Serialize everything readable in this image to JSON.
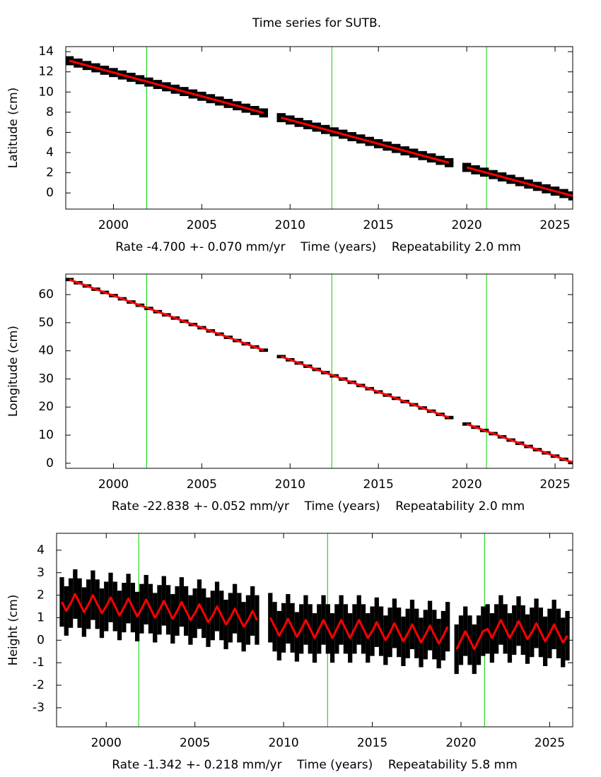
{
  "title": "Time series for SUTB.",
  "chart_data": [
    {
      "type": "line",
      "ylabel": "Latitude (cm)",
      "xlabel": "Rate -4.700 +- 0.070 mm/yr    Time (years)    Repeatability 2.0 mm",
      "xlim": [
        1997.3,
        2026.0
      ],
      "ylim": [
        -1.6,
        14.5
      ],
      "xticks": [
        2000,
        2005,
        2010,
        2015,
        2020,
        2025
      ],
      "yticks": [
        0,
        2,
        4,
        6,
        8,
        10,
        12,
        14
      ],
      "vlines": {
        "color": "#00d000",
        "values": [
          2001.88,
          2012.36,
          2021.12
        ]
      },
      "x": [
        1997.5,
        1998,
        1998.5,
        1999,
        1999.5,
        2000,
        2000.5,
        2001,
        2001.5,
        2002,
        2002.5,
        2003,
        2003.5,
        2004,
        2004.5,
        2005,
        2005.5,
        2006,
        2006.5,
        2007,
        2007.5,
        2008,
        2008.5,
        2009,
        2009.5,
        2010,
        2010.5,
        2011,
        2011.5,
        2012,
        2012.5,
        2013,
        2013.5,
        2014,
        2014.5,
        2015,
        2015.5,
        2016,
        2016.5,
        2017,
        2017.5,
        2018,
        2018.5,
        2019,
        2019.5,
        2020,
        2020.5,
        2021,
        2021.5,
        2022,
        2022.5,
        2023,
        2023.5,
        2024,
        2024.5,
        2025,
        2025.5,
        2026
      ],
      "series": [
        {
          "color": "#ff0000",
          "error": 0.45,
          "error_color": "#000000",
          "values": [
            13.1,
            12.87,
            12.63,
            12.4,
            12.16,
            11.93,
            11.69,
            11.46,
            11.22,
            10.99,
            10.75,
            10.52,
            10.28,
            10.05,
            9.81,
            9.58,
            9.34,
            9.11,
            8.87,
            8.64,
            8.4,
            8.17,
            7.93,
            null,
            7.46,
            7.23,
            6.99,
            6.76,
            6.52,
            6.29,
            6.05,
            5.82,
            5.58,
            5.35,
            5.11,
            4.88,
            4.64,
            4.41,
            4.17,
            3.94,
            3.7,
            3.47,
            3.23,
            3.0,
            null,
            2.53,
            2.29,
            2.06,
            1.82,
            1.59,
            1.35,
            1.12,
            0.88,
            0.65,
            0.41,
            0.18,
            -0.06,
            -0.29
          ]
        }
      ]
    },
    {
      "type": "line",
      "ylabel": "Longitude (cm)",
      "xlabel": "Rate -22.838 +- 0.052 mm/yr    Time (years)    Repeatability 2.0 mm",
      "xlim": [
        1997.3,
        2026.0
      ],
      "ylim": [
        -1.8,
        67.3
      ],
      "xticks": [
        2000,
        2005,
        2010,
        2015,
        2020,
        2025
      ],
      "yticks": [
        0,
        10,
        20,
        30,
        40,
        50,
        60
      ],
      "vlines": {
        "color": "#00d000",
        "values": [
          2001.88,
          2012.36,
          2021.12
        ]
      },
      "x": [
        1997.5,
        1998,
        1998.5,
        1999,
        1999.5,
        2000,
        2000.5,
        2001,
        2001.5,
        2002,
        2002.5,
        2003,
        2003.5,
        2004,
        2004.5,
        2005,
        2005.5,
        2006,
        2006.5,
        2007,
        2007.5,
        2008,
        2008.5,
        2009,
        2009.5,
        2010,
        2010.5,
        2011,
        2011.5,
        2012,
        2012.5,
        2013,
        2013.5,
        2014,
        2014.5,
        2015,
        2015.5,
        2016,
        2016.5,
        2017,
        2017.5,
        2018,
        2018.5,
        2019,
        2019.5,
        2020,
        2020.5,
        2021,
        2021.5,
        2022,
        2022.5,
        2023,
        2023.5,
        2024,
        2024.5,
        2025,
        2025.5,
        2026
      ],
      "series": [
        {
          "color": "#ff0000",
          "error": 0.6,
          "error_color": "#000000",
          "values": [
            65.35,
            64.21,
            63.07,
            61.92,
            60.78,
            59.64,
            58.5,
            57.36,
            56.21,
            55.07,
            53.93,
            52.79,
            51.65,
            50.51,
            49.36,
            48.22,
            47.08,
            45.94,
            44.8,
            43.65,
            42.51,
            41.37,
            40.23,
            null,
            37.94,
            36.8,
            35.66,
            34.52,
            33.38,
            32.23,
            31.09,
            29.95,
            28.81,
            27.67,
            26.52,
            25.38,
            24.24,
            23.1,
            21.96,
            20.82,
            19.67,
            18.53,
            17.39,
            16.25,
            null,
            13.96,
            12.82,
            11.68,
            10.54,
            9.4,
            8.25,
            7.11,
            5.97,
            4.83,
            3.69,
            2.54,
            1.4,
            0.26
          ]
        }
      ]
    },
    {
      "type": "line",
      "ylabel": "Height (cm)",
      "xlabel": "Rate -1.342 +- 0.218 mm/yr    Time (years)    Repeatability 5.8 mm",
      "xlim": [
        1997.2,
        2026.3
      ],
      "ylim": [
        -3.85,
        4.75
      ],
      "xticks": [
        2000,
        2005,
        2010,
        2015,
        2020,
        2025
      ],
      "yticks": [
        -3,
        -2,
        -1,
        0,
        1,
        2,
        3,
        4
      ],
      "vlines": {
        "color": "#00d000",
        "values": [
          2001.83,
          2012.48,
          2021.33
        ]
      },
      "x": [
        1997.5,
        1997.75,
        1998,
        1998.25,
        1998.5,
        1998.75,
        1999,
        1999.25,
        1999.5,
        1999.75,
        2000,
        2000.25,
        2000.5,
        2000.75,
        2001,
        2001.25,
        2001.5,
        2001.75,
        2002,
        2002.25,
        2002.5,
        2002.75,
        2003,
        2003.25,
        2003.5,
        2003.75,
        2004,
        2004.25,
        2004.5,
        2004.75,
        2005,
        2005.25,
        2005.5,
        2005.75,
        2006,
        2006.25,
        2006.5,
        2006.75,
        2007,
        2007.25,
        2007.5,
        2007.75,
        2008,
        2008.25,
        2008.5,
        2008.75,
        2009,
        2009.25,
        2009.5,
        2009.75,
        2010,
        2010.25,
        2010.5,
        2010.75,
        2011,
        2011.25,
        2011.5,
        2011.75,
        2012,
        2012.25,
        2012.5,
        2012.75,
        2013,
        2013.25,
        2013.5,
        2013.75,
        2014,
        2014.25,
        2014.5,
        2014.75,
        2015,
        2015.25,
        2015.5,
        2015.75,
        2016,
        2016.25,
        2016.5,
        2016.75,
        2017,
        2017.25,
        2017.5,
        2017.75,
        2018,
        2018.25,
        2018.5,
        2018.75,
        2019,
        2019.25,
        2019.5,
        2019.75,
        2020,
        2020.25,
        2020.5,
        2020.75,
        2021,
        2021.25,
        2021.5,
        2021.75,
        2022,
        2022.25,
        2022.5,
        2022.75,
        2023,
        2023.25,
        2023.5,
        2023.75,
        2024,
        2024.25,
        2024.5,
        2024.75,
        2025,
        2025.25,
        2025.5,
        2025.75,
        2026
      ],
      "series": [
        {
          "color": "#ff0000",
          "error": 1.1,
          "error_color": "#000000",
          "values": [
            1.7,
            1.3,
            1.65,
            2.05,
            1.65,
            1.25,
            1.6,
            2.0,
            1.6,
            1.2,
            1.5,
            1.9,
            1.5,
            1.1,
            1.45,
            1.85,
            1.45,
            1.05,
            1.4,
            1.8,
            1.4,
            1.0,
            1.35,
            1.75,
            1.35,
            0.95,
            1.3,
            1.7,
            1.3,
            0.9,
            1.2,
            1.6,
            1.2,
            0.8,
            1.1,
            1.5,
            1.1,
            0.7,
            1.0,
            1.4,
            1.0,
            0.6,
            0.9,
            1.3,
            0.9,
            null,
            null,
            1.0,
            0.6,
            0.2,
            0.55,
            0.95,
            0.55,
            0.15,
            0.5,
            0.9,
            0.5,
            0.1,
            0.5,
            0.9,
            0.5,
            0.1,
            0.5,
            0.9,
            0.5,
            0.1,
            0.5,
            0.9,
            0.5,
            0.1,
            0.4,
            0.8,
            0.4,
            0.0,
            0.35,
            0.75,
            0.35,
            -0.05,
            0.3,
            0.7,
            0.3,
            -0.1,
            0.25,
            0.65,
            0.25,
            -0.15,
            0.2,
            0.6,
            null,
            -0.4,
            0.0,
            0.4,
            0.0,
            -0.4,
            0.0,
            0.4,
            0.5,
            0.1,
            0.5,
            0.9,
            0.5,
            0.1,
            0.45,
            0.85,
            0.45,
            0.05,
            0.35,
            0.75,
            0.35,
            -0.05,
            0.3,
            0.7,
            0.3,
            -0.1,
            0.2
          ]
        }
      ]
    }
  ]
}
